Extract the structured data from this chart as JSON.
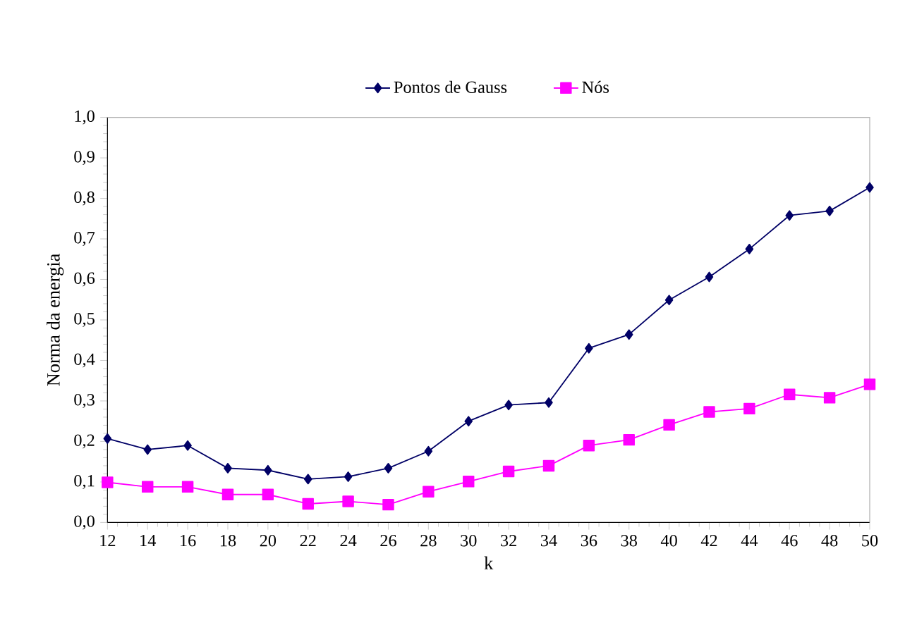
{
  "chart_data": {
    "type": "line",
    "xlabel": "k",
    "ylabel": "Norma da energia",
    "categories": [
      "12",
      "14",
      "16",
      "18",
      "20",
      "22",
      "24",
      "26",
      "28",
      "30",
      "32",
      "34",
      "36",
      "38",
      "40",
      "42",
      "44",
      "46",
      "48",
      "50"
    ],
    "series": [
      {
        "name": "Pontos de Gauss",
        "color": "#000066",
        "marker": "diamond",
        "values": [
          0.207,
          0.18,
          0.19,
          0.134,
          0.129,
          0.107,
          0.113,
          0.134,
          0.176,
          0.25,
          0.29,
          0.296,
          0.43,
          0.464,
          0.549,
          0.606,
          0.675,
          0.758,
          0.769,
          0.827
        ]
      },
      {
        "name": "Nós",
        "color": "#ff00ff",
        "marker": "square",
        "values": [
          0.099,
          0.088,
          0.088,
          0.069,
          0.069,
          0.046,
          0.052,
          0.044,
          0.076,
          0.101,
          0.126,
          0.14,
          0.19,
          0.204,
          0.241,
          0.273,
          0.281,
          0.316,
          0.308,
          0.341
        ]
      }
    ],
    "ylim": [
      0,
      1
    ],
    "yticks": [
      {
        "value": 0,
        "label": "0,0"
      },
      {
        "value": 0.1,
        "label": "0,1"
      },
      {
        "value": 0.2,
        "label": "0,2"
      },
      {
        "value": 0.3,
        "label": "0,3"
      },
      {
        "value": 0.4,
        "label": "0,4"
      },
      {
        "value": 0.5,
        "label": "0,5"
      },
      {
        "value": 0.6,
        "label": "0,6"
      },
      {
        "value": 0.7,
        "label": "0,7"
      },
      {
        "value": 0.8,
        "label": "0,8"
      },
      {
        "value": 0.9,
        "label": "0,9"
      },
      {
        "value": 1,
        "label": "1,0"
      }
    ],
    "legend": "top",
    "grid": false,
    "line_style": "solid"
  }
}
